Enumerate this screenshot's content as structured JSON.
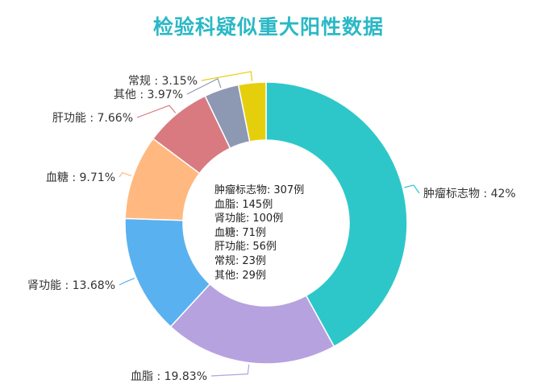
{
  "title": "检验科疑似重大阳性数据",
  "chart_data": {
    "type": "pie",
    "donut": true,
    "title": "检验科疑似重大阳性数据",
    "slices": [
      {
        "name": "肿瘤标志物",
        "percent": 42,
        "label": "肿瘤标志物 : 42%",
        "color": "#2ec7c9"
      },
      {
        "name": "血脂",
        "percent": 19.83,
        "label": "血脂 : 19.83%",
        "color": "#b6a2de"
      },
      {
        "name": "肾功能",
        "percent": 13.68,
        "label": "肾功能 : 13.68%",
        "color": "#5ab1ef"
      },
      {
        "name": "血糖",
        "percent": 9.71,
        "label": "血糖 : 9.71%",
        "color": "#ffb980"
      },
      {
        "name": "肝功能",
        "percent": 7.66,
        "label": "肝功能 : 7.66%",
        "color": "#d87a80"
      },
      {
        "name": "其他",
        "percent": 3.97,
        "label": "其他 : 3.97%",
        "color": "#8d98b3"
      },
      {
        "name": "常规",
        "percent": 3.15,
        "label": "常规 : 3.15%",
        "color": "#e5cf0d"
      }
    ],
    "center_counts": [
      {
        "name": "肿瘤标志物",
        "count": "307例"
      },
      {
        "name": "血脂",
        "count": "145例"
      },
      {
        "name": "肾功能",
        "count": "100例"
      },
      {
        "name": "血糖",
        "count": "71例"
      },
      {
        "name": "肝功能",
        "count": "56例"
      },
      {
        "name": "常规",
        "count": "23例"
      },
      {
        "name": "其他",
        "count": "29例"
      }
    ]
  }
}
